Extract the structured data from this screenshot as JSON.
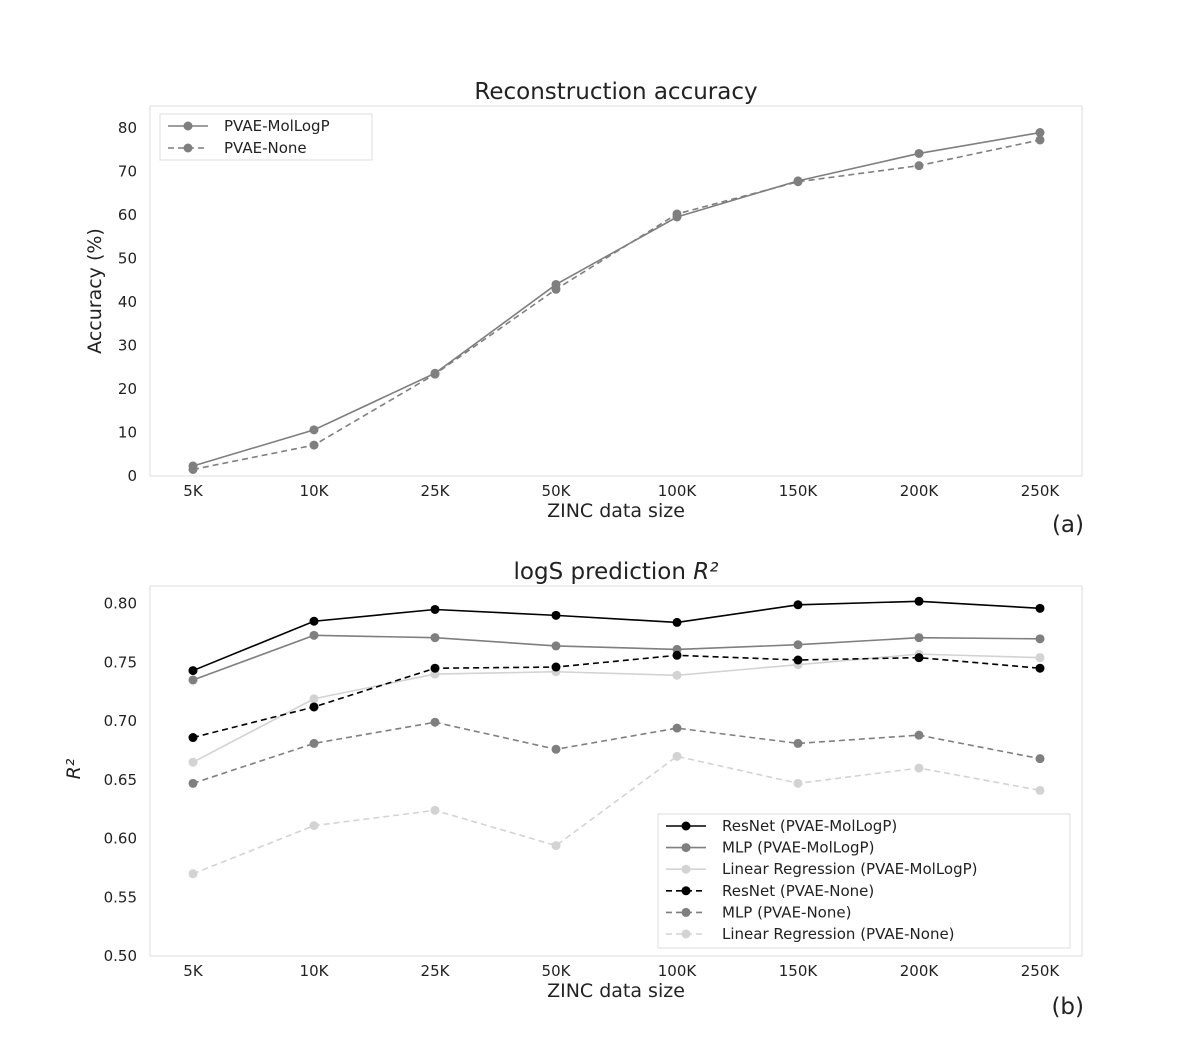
{
  "chart_data": [
    {
      "type": "line",
      "title": "Reconstruction accuracy",
      "title_suffix": "",
      "xlabel": "ZINC data size",
      "ylabel": "Accuracy (%)",
      "panel_label": "(a)",
      "categories": [
        "5K",
        "10K",
        "25K",
        "50K",
        "100K",
        "150K",
        "200K",
        "250K"
      ],
      "ylim": [
        0,
        85
      ],
      "yticks": [
        0,
        10,
        20,
        30,
        40,
        50,
        60,
        70,
        80
      ],
      "ytick_labels": [
        "0",
        "10",
        "20",
        "30",
        "40",
        "50",
        "60",
        "70",
        "80"
      ],
      "legend_position": "top-left",
      "grid": false,
      "series": [
        {
          "name": "PVAE-MolLogP",
          "color": "#7f7f7f",
          "dash": "solid",
          "values": [
            2.3,
            10.6,
            23.6,
            44.0,
            59.5,
            67.8,
            74.1,
            78.9
          ]
        },
        {
          "name": "PVAE-None",
          "color": "#7f7f7f",
          "dash": "dashed",
          "values": [
            1.5,
            7.1,
            23.4,
            42.9,
            60.2,
            67.6,
            71.3,
            77.2
          ]
        }
      ]
    },
    {
      "type": "line",
      "title": "logS prediction ",
      "title_suffix": "R²",
      "xlabel": "ZINC data size",
      "ylabel": "R²",
      "panel_label": "(b)",
      "categories": [
        "5K",
        "10K",
        "25K",
        "50K",
        "100K",
        "150K",
        "200K",
        "250K"
      ],
      "ylim": [
        0.5,
        0.815
      ],
      "yticks": [
        0.5,
        0.55,
        0.6,
        0.65,
        0.7,
        0.75,
        0.8
      ],
      "ytick_labels": [
        "0.50",
        "0.55",
        "0.60",
        "0.65",
        "0.70",
        "0.75",
        "0.80"
      ],
      "legend_position": "lower-right",
      "grid": false,
      "series": [
        {
          "name": "ResNet (PVAE-MolLogP)",
          "color": "#000000",
          "dash": "solid",
          "values": [
            0.743,
            0.785,
            0.795,
            0.79,
            0.784,
            0.799,
            0.802,
            0.796
          ]
        },
        {
          "name": "MLP (PVAE-MolLogP)",
          "color": "#7f7f7f",
          "dash": "solid",
          "values": [
            0.735,
            0.773,
            0.771,
            0.764,
            0.761,
            0.765,
            0.771,
            0.77
          ]
        },
        {
          "name": "Linear Regression (PVAE-MolLogP)",
          "color": "#d3d3d3",
          "dash": "solid",
          "values": [
            0.665,
            0.719,
            0.74,
            0.742,
            0.739,
            0.748,
            0.757,
            0.754
          ]
        },
        {
          "name": "ResNet (PVAE-None)",
          "color": "#000000",
          "dash": "dashed",
          "values": [
            0.686,
            0.712,
            0.745,
            0.746,
            0.756,
            0.752,
            0.754,
            0.745
          ]
        },
        {
          "name": "MLP (PVAE-None)",
          "color": "#7f7f7f",
          "dash": "dashed",
          "values": [
            0.647,
            0.681,
            0.699,
            0.676,
            0.694,
            0.681,
            0.688,
            0.668
          ]
        },
        {
          "name": "Linear Regression (PVAE-None)",
          "color": "#d3d3d3",
          "dash": "dashed",
          "values": [
            0.57,
            0.611,
            0.624,
            0.594,
            0.67,
            0.647,
            0.66,
            0.641
          ]
        }
      ]
    }
  ]
}
